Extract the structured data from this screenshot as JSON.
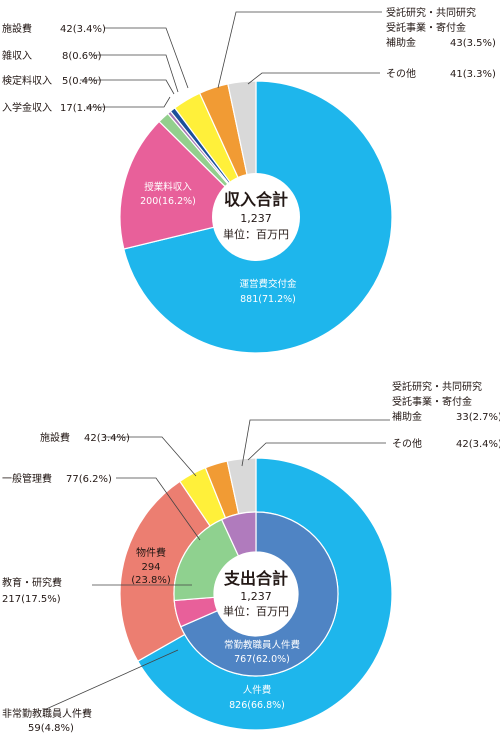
{
  "colors": {
    "blue": "#1eb6ec",
    "pink": "#e8609a",
    "green": "#93cf8d",
    "purple": "#a677b5",
    "darkblue": "#1b4f9a",
    "yellow": "#fff03a",
    "orange": "#f19b34",
    "gray": "#d9d9d9",
    "salmon": "#ec7e71",
    "steel": "#4f84c4",
    "lavender": "#b07bbd",
    "lightgreen": "#8fd18f"
  },
  "chart_data": [
    {
      "type": "pie",
      "center": {
        "title": "収入合計",
        "total": "1,237",
        "unit": "単位：百万円"
      },
      "slices": [
        {
          "key": "運営費交付金",
          "label": "運営費交付金",
          "value_text": "881(71.2%)",
          "value": 881,
          "percent": 71.2,
          "color": "blue"
        },
        {
          "key": "授業料収入",
          "label": "授業料収入",
          "value_text": "200(16.2%)",
          "value": 200,
          "percent": 16.2,
          "color": "pink"
        },
        {
          "key": "入学金収入",
          "label": "入学金収入",
          "value_text": "17(1.4%)",
          "value": 17,
          "percent": 1.4,
          "color": "green"
        },
        {
          "key": "検定料収入",
          "label": "検定料収入",
          "value_text": "5(0.4%)",
          "value": 5,
          "percent": 0.4,
          "color": "purple"
        },
        {
          "key": "雑収入",
          "label": "雑収入",
          "value_text": "8(0.6%)",
          "value": 8,
          "percent": 0.6,
          "color": "darkblue"
        },
        {
          "key": "施設費",
          "label": "施設費",
          "value_text": "42(3.4%)",
          "value": 42,
          "percent": 3.4,
          "color": "yellow"
        },
        {
          "key": "受託研究",
          "label_lines": [
            "受託研究・共同研究",
            "受託事業・寄付金",
            "補助金"
          ],
          "value_text": "43(3.5%)",
          "value": 43,
          "percent": 3.5,
          "color": "orange"
        },
        {
          "key": "その他",
          "label": "その他",
          "value_text": "41(3.3%)",
          "value": 41,
          "percent": 3.3,
          "color": "gray"
        }
      ]
    },
    {
      "type": "pie",
      "center": {
        "title": "支出合計",
        "total": "1,237",
        "unit": "単位：百万円"
      },
      "outer": [
        {
          "key": "人件費",
          "label": "人件費",
          "value_text": "826(66.8%)",
          "value": 826,
          "percent": 66.8,
          "color": "blue"
        },
        {
          "key": "物件費",
          "label": "物件費",
          "value_lines": [
            "294",
            "(23.8%)"
          ],
          "value": 294,
          "percent": 23.8,
          "color": "salmon"
        },
        {
          "key": "施設費",
          "label": "施設費",
          "value_text": "42(3.4%)",
          "value": 42,
          "percent": 3.4,
          "color": "yellow"
        },
        {
          "key": "受託研究",
          "label_lines": [
            "受託研究・共同研究",
            "受託事業・寄付金",
            "補助金"
          ],
          "value_text": "33(2.7%)",
          "value": 33,
          "percent": 2.7,
          "color": "orange"
        },
        {
          "key": "その他",
          "label": "その他",
          "value_text": "42(3.4%)",
          "value": 42,
          "percent": 3.4,
          "color": "gray"
        }
      ],
      "inner": [
        {
          "key": "常勤教職員人件費",
          "label": "常勤教職員人件費",
          "value_text": "767(62.0%)",
          "value": 767,
          "percent": 62.0,
          "color": "steel"
        },
        {
          "key": "非常勤教職員人件費",
          "label": "非常勤教職員人件費",
          "value_text": "59(4.8%)",
          "value": 59,
          "percent": 4.8,
          "color": "pink"
        },
        {
          "key": "教育・研究費",
          "label": "教育・研究費",
          "value_text": "217(17.5%)",
          "value": 217,
          "percent": 17.5,
          "color": "lightgreen"
        },
        {
          "key": "一般管理費",
          "label": "一般管理費",
          "value_text": "77(6.2%)",
          "value": 77,
          "percent": 6.2,
          "color": "lavender"
        }
      ]
    }
  ]
}
